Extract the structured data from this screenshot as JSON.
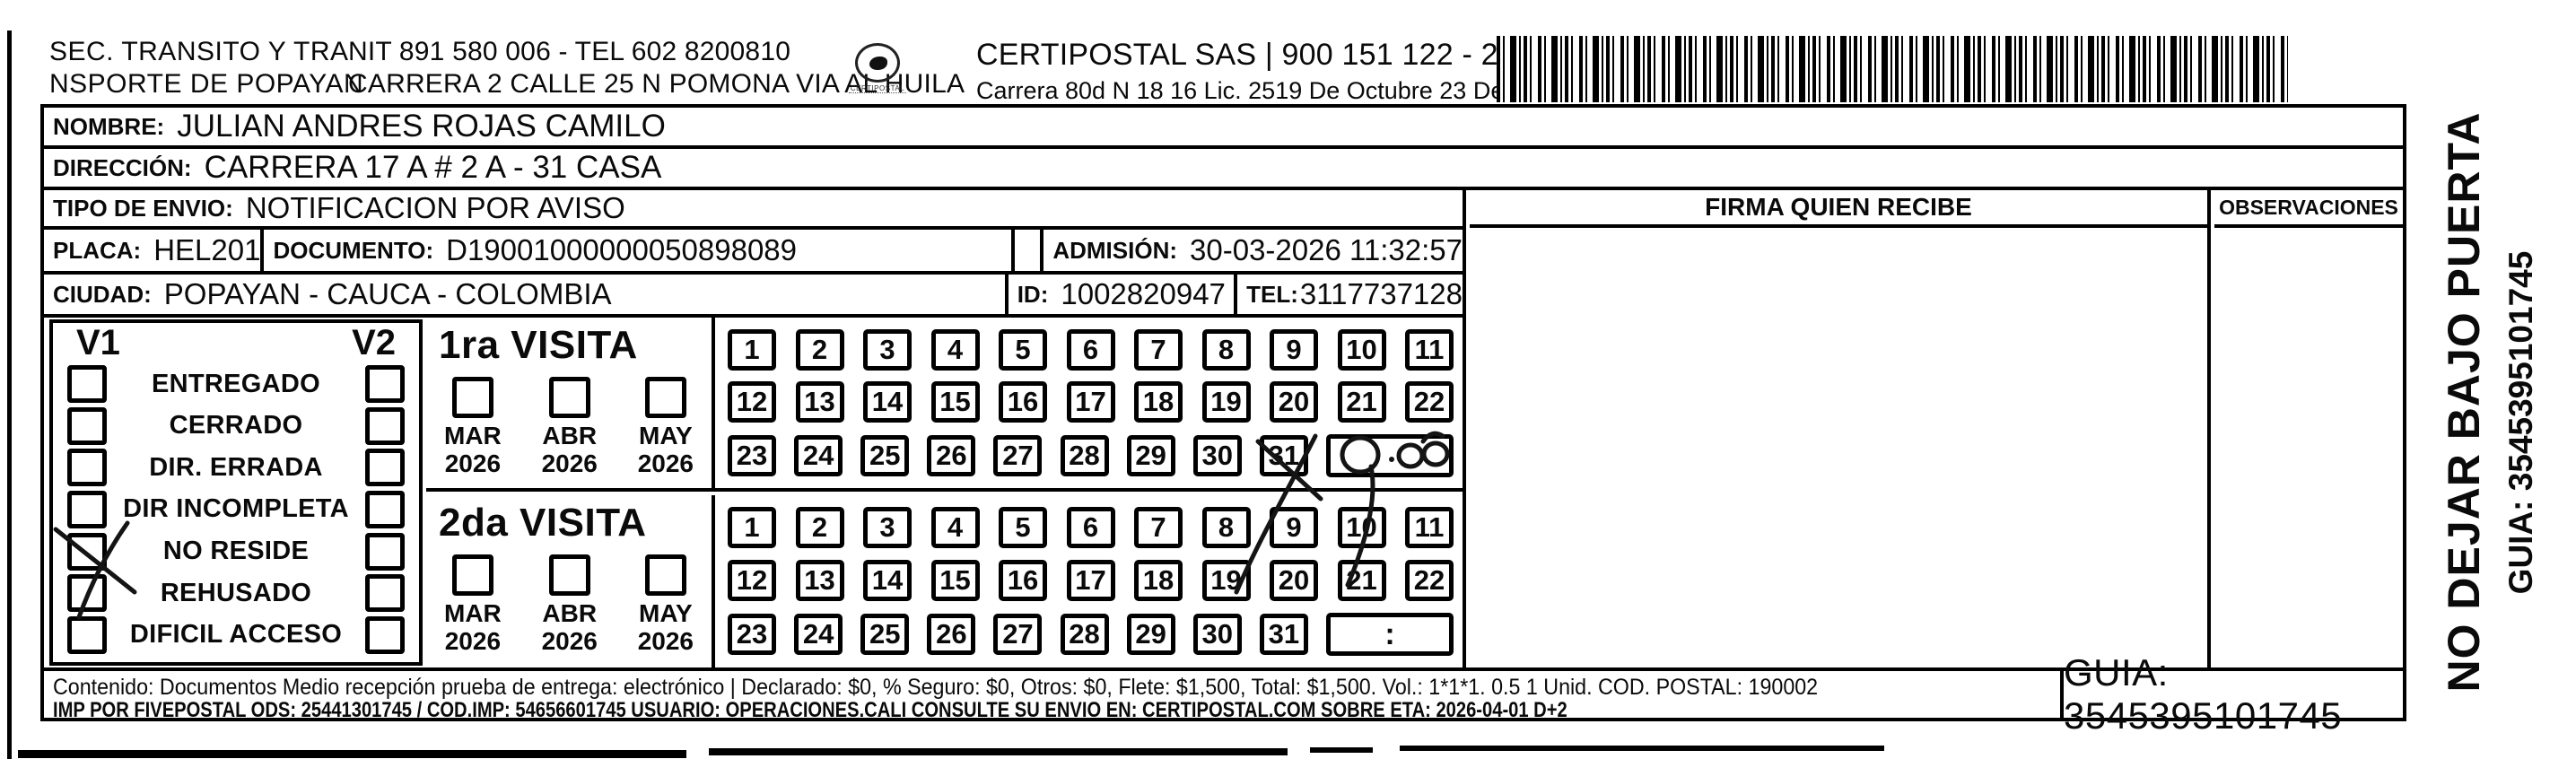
{
  "document_type": "Guía de notificación postal (escaneada)",
  "header": {
    "sender_line1": "SEC. TRANSITO Y TRA",
    "sender_line2": "NSPORTE DE POPAYAN",
    "sender_contact": "NIT 891 580 006 - TEL 602 8200810",
    "sender_address": "CARRERA 2 CALLE 25 N POMONA VIA AL HUILA",
    "logo_caption": "CERTIPOSTAL",
    "company_title": "CERTIPOSTAL SAS | 900 151 122 - 2",
    "company_subtitle": "Carrera 80d N 18 16  Lic. 2519 De Octubre 23 De 2015"
  },
  "recipient": {
    "nombre_label": "NOMBRE:",
    "nombre": "JULIAN ANDRES ROJAS CAMILO",
    "direccion_label": "DIRECCIÓN:",
    "direccion": "CARRERA 17 A # 2 A - 31 CASA",
    "tipo_envio_label": "TIPO DE ENVIO:",
    "tipo_envio": "NOTIFICACION POR AVISO",
    "placa_label": "PLACA:",
    "placa": "HEL201",
    "documento_label": "DOCUMENTO:",
    "documento": "D19001000000050898089",
    "admision_label": "ADMISIÓN:",
    "admision": "30-03-2026 11:32:57",
    "ciudad_label": "CIUDAD:",
    "ciudad": "POPAYAN - CAUCA - COLOMBIA",
    "id_label": "ID:",
    "id_value": "1002820947",
    "tel_label": "TEL:",
    "tel": "3117737128"
  },
  "signature_panel": {
    "firma_header": "FIRMA QUIEN RECIBE",
    "obs_header": "OBSERVACIONES"
  },
  "status_checklist": {
    "col1": "V1",
    "col2": "V2",
    "items": [
      "ENTREGADO",
      "CERRADO",
      "DIR. ERRADA",
      "DIR INCOMPLETA",
      "NO RESIDE",
      "REHUSADO",
      "DIFICIL ACCESO"
    ],
    "v1_checked_item": "NO RESIDE",
    "v1_checked_index": 4
  },
  "visits": [
    {
      "title": "1ra VISITA",
      "months": [
        {
          "name": "MAR",
          "year": "2026"
        },
        {
          "name": "ABR",
          "year": "2026"
        },
        {
          "name": "MAY",
          "year": "2026"
        }
      ],
      "day_rows": [
        [
          1,
          2,
          3,
          4,
          5,
          6,
          7,
          8,
          9,
          10,
          11
        ],
        [
          12,
          13,
          14,
          15,
          16,
          17,
          18,
          19,
          20,
          21,
          22
        ],
        [
          23,
          24,
          25,
          26,
          27,
          28,
          29,
          30,
          31
        ]
      ],
      "crossed_day": 31,
      "time_box": {
        "printed_value": "",
        "handwritten_value": "9:00"
      }
    },
    {
      "title": "2da VISITA",
      "months": [
        {
          "name": "MAR",
          "year": "2026"
        },
        {
          "name": "ABR",
          "year": "2026"
        },
        {
          "name": "MAY",
          "year": "2026"
        }
      ],
      "day_rows": [
        [
          1,
          2,
          3,
          4,
          5,
          6,
          7,
          8,
          9,
          10,
          11
        ],
        [
          12,
          13,
          14,
          15,
          16,
          17,
          18,
          19,
          20,
          21,
          22
        ],
        [
          23,
          24,
          25,
          26,
          27,
          28,
          29,
          30,
          31
        ]
      ],
      "crossed_day": null,
      "time_box": {
        "printed_value": ":",
        "handwritten_value": ""
      }
    }
  ],
  "handwriting": {
    "checklist_mark": {
      "column": "V1",
      "item": "NO RESIDE",
      "mark": "X"
    },
    "visit1_day_crossed": {
      "day": 31,
      "mark": "X"
    },
    "visit1_time_note": "9:00"
  },
  "footer": {
    "line1": "Contenido: Documentos Medio recepción prueba de entrega: electrónico | Declarado: $0, % Seguro: $0, Otros: $0, Flete: $1,500, Total: $1,500. Vol.: 1*1*1. 0.5  1 Unid. COD. POSTAL: 190002",
    "line2": "IMP POR FIVEPOSTAL ODS: 25441301745 / COD.IMP: 54656601745 USUARIO: OPERACIONES.CALI CONSULTE SU ENVIO EN: CERTIPOSTAL.COM SOBRE ETA: 2026-04-01 D+2",
    "guia_box": "GUIA: 3545395101745"
  },
  "side_note": {
    "line1": "NO DEJAR BAJO PUERTA",
    "line2": "GUIA: 3545395101745"
  }
}
